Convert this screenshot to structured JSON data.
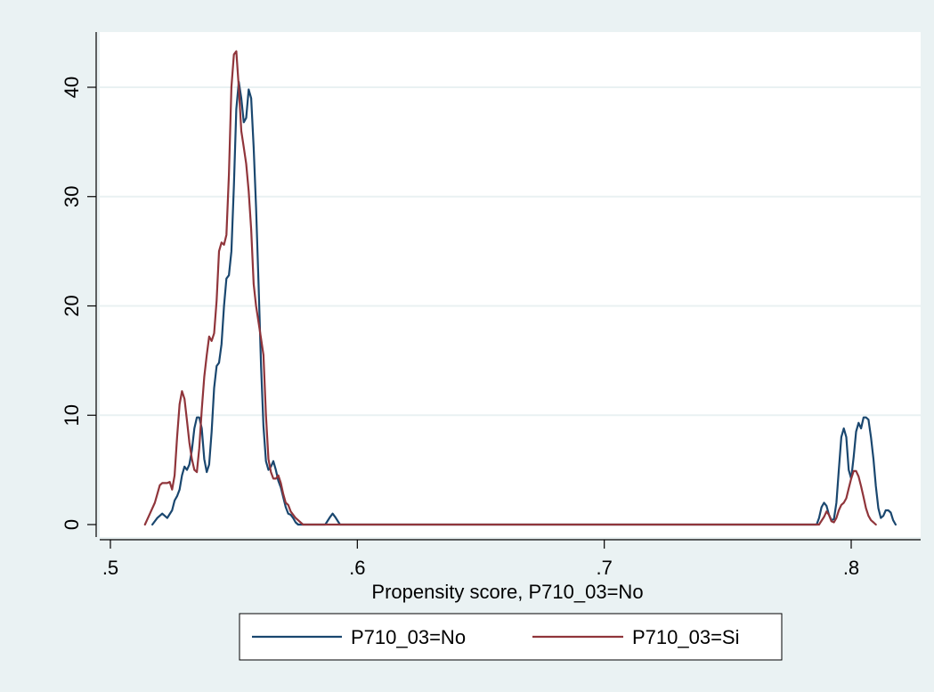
{
  "chart_data": {
    "type": "line",
    "title": "",
    "xlabel": "Propensity score, P710_03=No",
    "ylabel": "",
    "xlim": [
      0.5,
      0.825
    ],
    "ylim": [
      0,
      45
    ],
    "x_ticks": [
      {
        "value": 0.5,
        "label": ".5"
      },
      {
        "value": 0.6,
        "label": ".6"
      },
      {
        "value": 0.7,
        "label": ".7"
      },
      {
        "value": 0.8,
        "label": ".8"
      }
    ],
    "y_ticks": [
      {
        "value": 0,
        "label": "0"
      },
      {
        "value": 10,
        "label": "10"
      },
      {
        "value": 20,
        "label": "20"
      },
      {
        "value": 30,
        "label": "30"
      },
      {
        "value": 40,
        "label": "40"
      }
    ],
    "grid": "horizontal",
    "legend_position": "bottom",
    "series": [
      {
        "name": "P710_03=No",
        "color": "#1a476f",
        "points": [
          [
            0.517,
            0
          ],
          [
            0.519,
            0.6
          ],
          [
            0.521,
            1.0
          ],
          [
            0.523,
            0.6
          ],
          [
            0.525,
            1.3
          ],
          [
            0.526,
            2.2
          ],
          [
            0.527,
            2.6
          ],
          [
            0.528,
            3.2
          ],
          [
            0.529,
            4.5
          ],
          [
            0.53,
            5.3
          ],
          [
            0.531,
            5.0
          ],
          [
            0.532,
            5.5
          ],
          [
            0.533,
            6.8
          ],
          [
            0.534,
            8.8
          ],
          [
            0.535,
            9.8
          ],
          [
            0.536,
            9.8
          ],
          [
            0.537,
            8.8
          ],
          [
            0.538,
            6.0
          ],
          [
            0.539,
            4.8
          ],
          [
            0.54,
            5.5
          ],
          [
            0.541,
            8.5
          ],
          [
            0.542,
            12.5
          ],
          [
            0.543,
            14.5
          ],
          [
            0.544,
            14.8
          ],
          [
            0.545,
            16.5
          ],
          [
            0.546,
            20.0
          ],
          [
            0.547,
            22.5
          ],
          [
            0.548,
            22.8
          ],
          [
            0.549,
            25.0
          ],
          [
            0.55,
            31.0
          ],
          [
            0.551,
            38.0
          ],
          [
            0.552,
            40.5
          ],
          [
            0.553,
            39.0
          ],
          [
            0.554,
            36.8
          ],
          [
            0.555,
            37.2
          ],
          [
            0.556,
            39.8
          ],
          [
            0.557,
            39.0
          ],
          [
            0.558,
            34.5
          ],
          [
            0.559,
            29.0
          ],
          [
            0.56,
            22.0
          ],
          [
            0.561,
            14.5
          ],
          [
            0.562,
            9.0
          ],
          [
            0.563,
            5.8
          ],
          [
            0.564,
            5.0
          ],
          [
            0.565,
            5.3
          ],
          [
            0.566,
            5.8
          ],
          [
            0.567,
            5.0
          ],
          [
            0.568,
            4.0
          ],
          [
            0.569,
            3.4
          ],
          [
            0.57,
            2.5
          ],
          [
            0.571,
            1.6
          ],
          [
            0.572,
            1.0
          ],
          [
            0.573,
            0.9
          ],
          [
            0.574,
            0.6
          ],
          [
            0.575,
            0.2
          ],
          [
            0.576,
            0
          ],
          [
            0.587,
            0
          ],
          [
            0.589,
            0.7
          ],
          [
            0.59,
            1.0
          ],
          [
            0.591,
            0.7
          ],
          [
            0.593,
            0
          ],
          [
            0.786,
            0
          ],
          [
            0.787,
            0.6
          ],
          [
            0.788,
            1.6
          ],
          [
            0.789,
            2.0
          ],
          [
            0.79,
            1.7
          ],
          [
            0.791,
            0.9
          ],
          [
            0.792,
            0.4
          ],
          [
            0.793,
            0.5
          ],
          [
            0.794,
            2.0
          ],
          [
            0.795,
            5.0
          ],
          [
            0.796,
            8.0
          ],
          [
            0.797,
            8.8
          ],
          [
            0.798,
            8.0
          ],
          [
            0.799,
            5.0
          ],
          [
            0.8,
            4.2
          ],
          [
            0.801,
            6.2
          ],
          [
            0.802,
            8.5
          ],
          [
            0.803,
            9.3
          ],
          [
            0.804,
            8.8
          ],
          [
            0.805,
            9.8
          ],
          [
            0.806,
            9.8
          ],
          [
            0.807,
            9.6
          ],
          [
            0.808,
            8.0
          ],
          [
            0.809,
            6.0
          ],
          [
            0.81,
            3.5
          ],
          [
            0.811,
            1.5
          ],
          [
            0.812,
            0.6
          ],
          [
            0.813,
            0.8
          ],
          [
            0.814,
            1.3
          ],
          [
            0.815,
            1.3
          ],
          [
            0.816,
            1.1
          ],
          [
            0.817,
            0.4
          ],
          [
            0.818,
            0
          ]
        ]
      },
      {
        "name": "P710_03=Si",
        "color": "#90353b",
        "points": [
          [
            0.514,
            0
          ],
          [
            0.516,
            1.0
          ],
          [
            0.518,
            2.0
          ],
          [
            0.52,
            3.6
          ],
          [
            0.521,
            3.8
          ],
          [
            0.523,
            3.8
          ],
          [
            0.524,
            3.9
          ],
          [
            0.525,
            3.2
          ],
          [
            0.526,
            4.5
          ],
          [
            0.527,
            8.0
          ],
          [
            0.528,
            11.0
          ],
          [
            0.529,
            12.2
          ],
          [
            0.53,
            11.5
          ],
          [
            0.531,
            9.5
          ],
          [
            0.532,
            7.5
          ],
          [
            0.533,
            6.0
          ],
          [
            0.534,
            5.0
          ],
          [
            0.535,
            4.8
          ],
          [
            0.536,
            7.0
          ],
          [
            0.537,
            10.5
          ],
          [
            0.538,
            13.5
          ],
          [
            0.539,
            15.5
          ],
          [
            0.54,
            17.2
          ],
          [
            0.541,
            16.8
          ],
          [
            0.542,
            17.5
          ],
          [
            0.543,
            20.5
          ],
          [
            0.544,
            25.0
          ],
          [
            0.545,
            25.8
          ],
          [
            0.546,
            25.6
          ],
          [
            0.547,
            26.5
          ],
          [
            0.548,
            32.0
          ],
          [
            0.549,
            40.0
          ],
          [
            0.55,
            43.0
          ],
          [
            0.551,
            43.3
          ],
          [
            0.552,
            40.0
          ],
          [
            0.553,
            36.0
          ],
          [
            0.554,
            34.5
          ],
          [
            0.555,
            33.0
          ],
          [
            0.556,
            30.5
          ],
          [
            0.557,
            27.0
          ],
          [
            0.558,
            22.0
          ],
          [
            0.559,
            20.0
          ],
          [
            0.56,
            18.5
          ],
          [
            0.561,
            17.0
          ],
          [
            0.562,
            15.5
          ],
          [
            0.563,
            10.0
          ],
          [
            0.564,
            6.0
          ],
          [
            0.565,
            4.8
          ],
          [
            0.566,
            4.2
          ],
          [
            0.567,
            4.2
          ],
          [
            0.568,
            4.5
          ],
          [
            0.569,
            3.8
          ],
          [
            0.57,
            2.8
          ],
          [
            0.571,
            2.0
          ],
          [
            0.572,
            1.8
          ],
          [
            0.573,
            1.2
          ],
          [
            0.575,
            0.6
          ],
          [
            0.577,
            0.2
          ],
          [
            0.578,
            0
          ],
          [
            0.787,
            0
          ],
          [
            0.789,
            0.7
          ],
          [
            0.79,
            1.2
          ],
          [
            0.791,
            0.9
          ],
          [
            0.792,
            0.3
          ],
          [
            0.793,
            0.2
          ],
          [
            0.794,
            0.6
          ],
          [
            0.795,
            1.3
          ],
          [
            0.796,
            1.8
          ],
          [
            0.797,
            2.0
          ],
          [
            0.798,
            2.4
          ],
          [
            0.799,
            3.3
          ],
          [
            0.8,
            4.2
          ],
          [
            0.801,
            4.9
          ],
          [
            0.802,
            4.9
          ],
          [
            0.803,
            4.4
          ],
          [
            0.804,
            3.5
          ],
          [
            0.805,
            2.5
          ],
          [
            0.806,
            1.5
          ],
          [
            0.807,
            0.8
          ],
          [
            0.808,
            0.4
          ],
          [
            0.809,
            0.2
          ],
          [
            0.81,
            0
          ]
        ]
      }
    ]
  }
}
